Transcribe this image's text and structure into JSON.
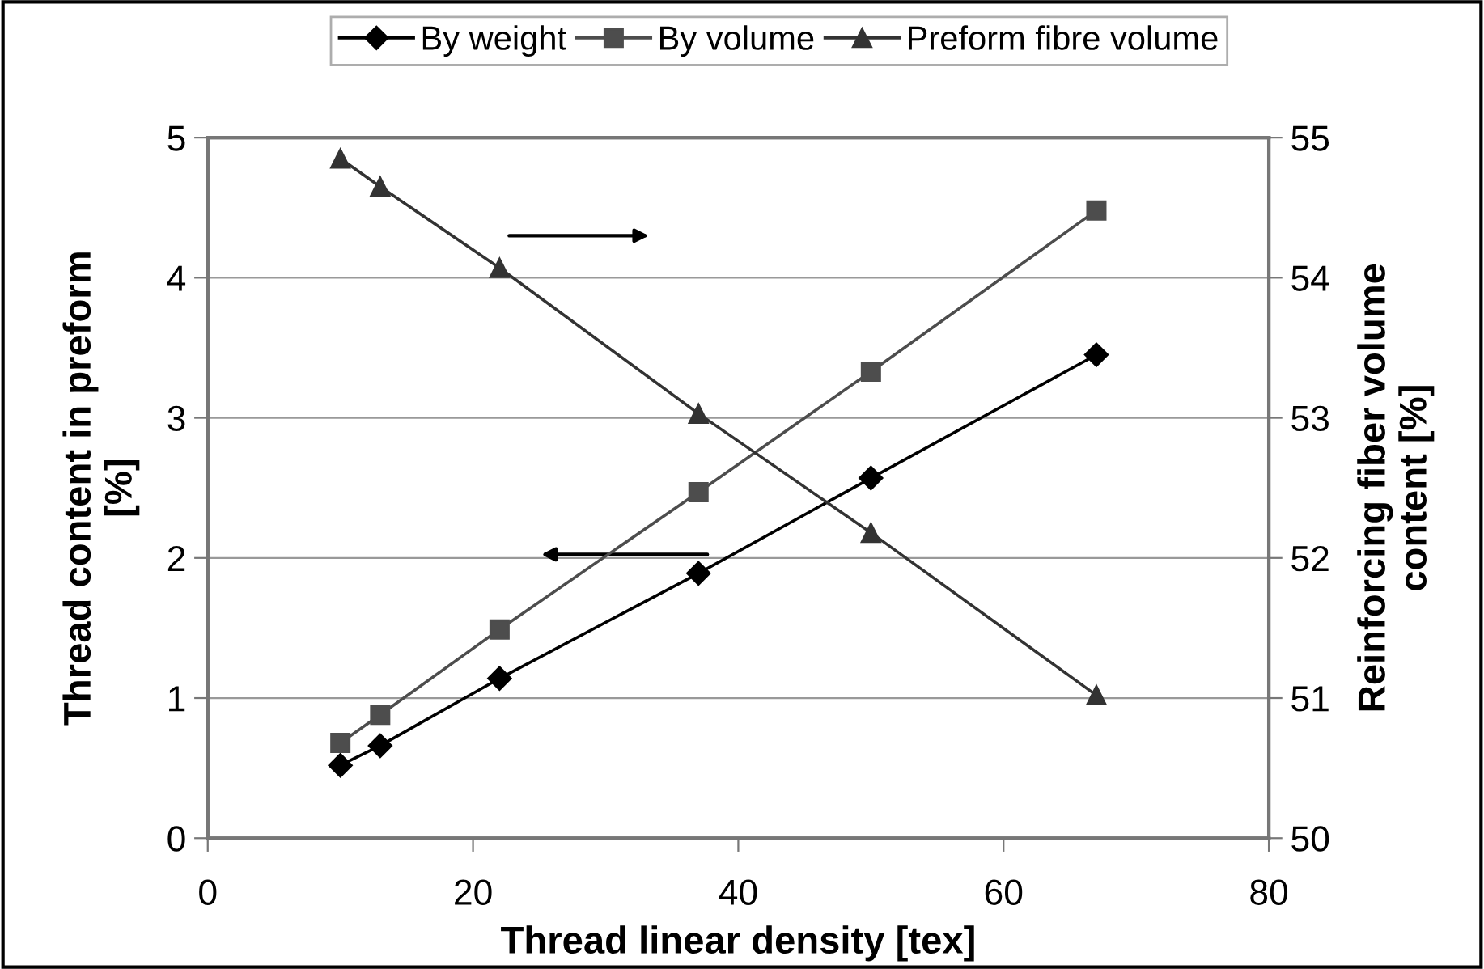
{
  "chart_data": {
    "type": "line",
    "xlabel": "Thread linear density [tex]",
    "ylabel": "Thread content in preform\n[%]",
    "y2label": "Reinforcing fiber volume\ncontent [%]",
    "x": [
      10,
      13,
      22,
      37,
      50,
      67
    ],
    "series": [
      {
        "name": "By weight",
        "color": "#000000",
        "marker": "diamond",
        "values": [
          0.52,
          0.66,
          1.14,
          1.89,
          2.57,
          3.45
        ]
      },
      {
        "name": "By volume",
        "color": "#4d4d4d",
        "marker": "square",
        "values": [
          0.68,
          0.88,
          1.49,
          2.47,
          3.33,
          4.48
        ]
      },
      {
        "name": "Preform fibre volume",
        "color": "#333333",
        "marker": "triangle",
        "axis": "y2",
        "values": [
          54.85,
          54.65,
          54.07,
          53.03,
          52.18,
          51.02
        ]
      }
    ],
    "xlim": [
      0,
      80
    ],
    "xticks": [
      0,
      20,
      40,
      60,
      80
    ],
    "ylim": [
      0,
      5
    ],
    "yticks": [
      0,
      1,
      2,
      3,
      4,
      5
    ],
    "y2lim": [
      50,
      55
    ],
    "y2ticks": [
      50,
      51,
      52,
      53,
      54,
      55
    ],
    "grid": "y",
    "legend": "top",
    "line_style": "solid"
  }
}
